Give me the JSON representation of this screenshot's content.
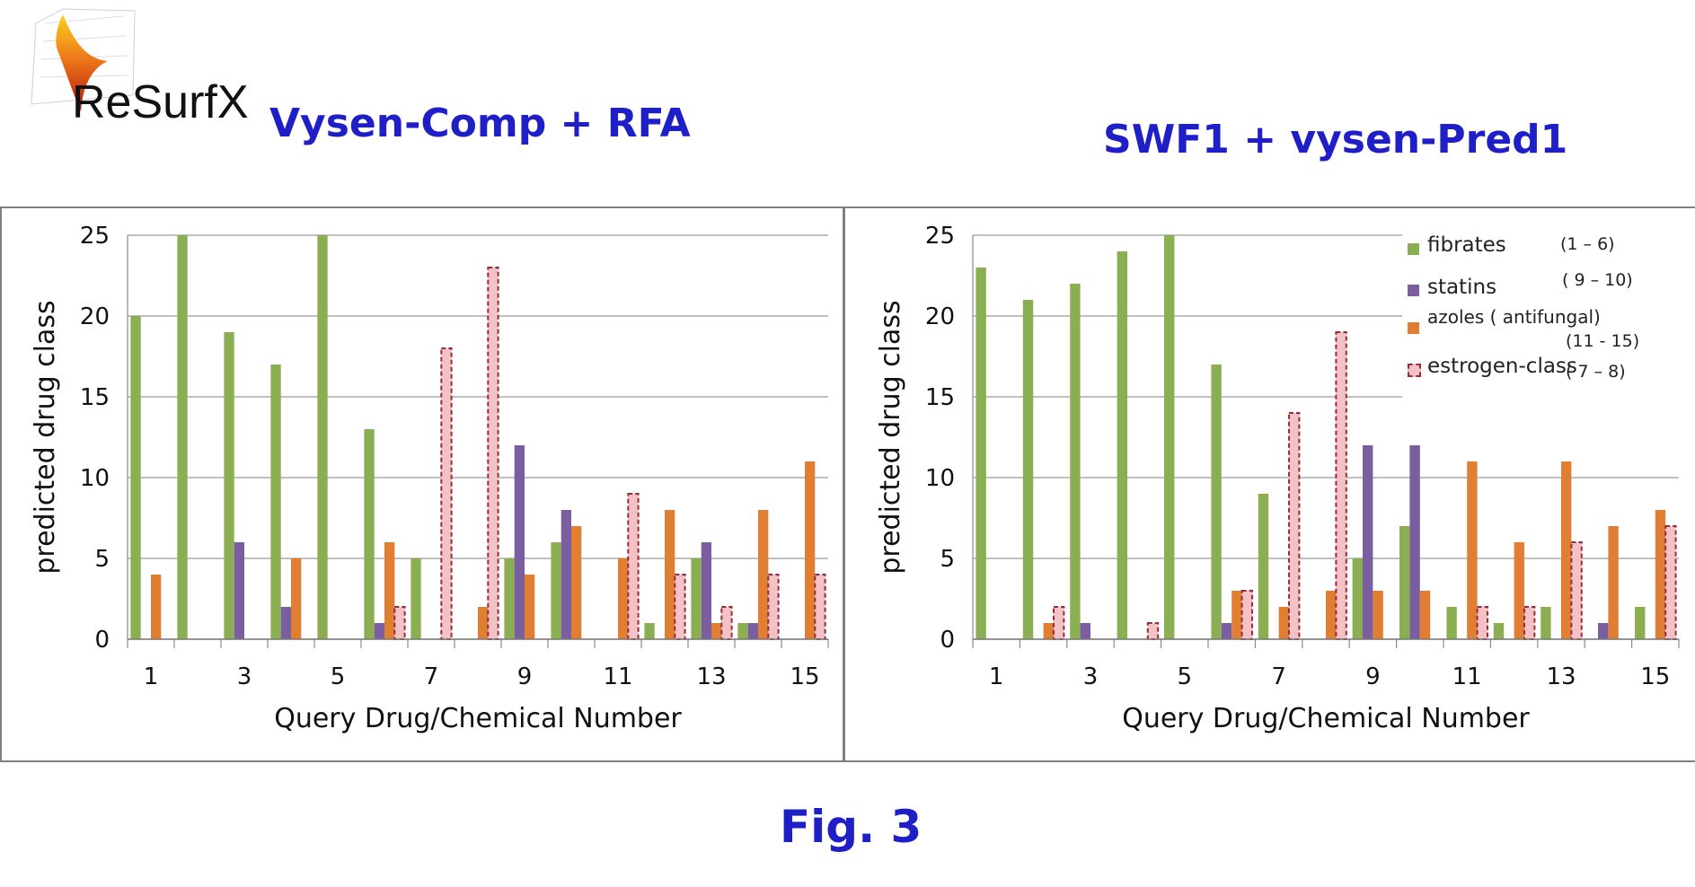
{
  "logo": {
    "text": "ReSurfX"
  },
  "figure_label": "Fig. 3",
  "colors": {
    "fibrates": "#8bae52",
    "statins": "#7a5ea0",
    "azoles": "#e07f34",
    "estrogen_fill": "#f2c2c6",
    "estrogen_border": "#9c2a35",
    "title": "#1f1fc8"
  },
  "legend": {
    "items": [
      {
        "label": "fibrates",
        "range": "(1 – 6)",
        "color": "#8bae52",
        "style": "solid"
      },
      {
        "label": "statins",
        "range": "( 9 – 10)",
        "color": "#7a5ea0",
        "style": "solid"
      },
      {
        "label": "azoles ( antifungal)",
        "range": "(11 - 15)",
        "color": "#e07f34",
        "style": "solid"
      },
      {
        "label": "estrogen-class",
        "range": "( 7 – 8)",
        "color": "#f2c2c6",
        "style": "dashed"
      }
    ]
  },
  "chart_data": [
    {
      "type": "bar",
      "title": "Vysen-Comp + RFA",
      "xlabel": "Query Drug/Chemical Number",
      "ylabel": "predicted drug class",
      "ylim": [
        0,
        25
      ],
      "yticks": [
        0,
        5,
        10,
        15,
        20,
        25
      ],
      "xtick_labels": [
        "1",
        "3",
        "5",
        "7",
        "9",
        "11",
        "13",
        "15"
      ],
      "categories": [
        1,
        2,
        3,
        4,
        5,
        6,
        7,
        8,
        9,
        10,
        11,
        12,
        13,
        14,
        15
      ],
      "grid": "horizontal",
      "series": [
        {
          "name": "fibrates",
          "values": [
            20,
            25,
            19,
            17,
            25,
            13,
            5,
            0,
            5,
            6,
            0,
            1,
            5,
            1,
            0
          ]
        },
        {
          "name": "statins",
          "values": [
            0,
            0,
            6,
            2,
            0,
            1,
            0,
            0,
            12,
            8,
            0,
            0,
            6,
            1,
            0
          ]
        },
        {
          "name": "azoles ( antifungal)",
          "values": [
            4,
            0,
            0,
            5,
            0,
            6,
            0,
            2,
            4,
            7,
            5,
            8,
            1,
            8,
            11
          ]
        },
        {
          "name": "estrogen-class",
          "values": [
            0,
            0,
            0,
            0,
            0,
            2,
            18,
            23,
            0,
            0,
            9,
            4,
            2,
            4,
            4
          ]
        }
      ]
    },
    {
      "type": "bar",
      "title": "SWF1 + vysen-Pred1",
      "xlabel": "Query Drug/Chemical Number",
      "ylabel": "predicted drug class",
      "ylim": [
        0,
        25
      ],
      "yticks": [
        0,
        5,
        10,
        15,
        20,
        25
      ],
      "xtick_labels": [
        "1",
        "3",
        "5",
        "7",
        "9",
        "11",
        "13",
        "15"
      ],
      "categories": [
        1,
        2,
        3,
        4,
        5,
        6,
        7,
        8,
        9,
        10,
        11,
        12,
        13,
        14,
        15
      ],
      "grid": "horizontal",
      "legend": "top-right",
      "series": [
        {
          "name": "fibrates",
          "values": [
            23,
            21,
            22,
            24,
            25,
            17,
            9,
            0,
            5,
            7,
            2,
            1,
            2,
            0,
            2
          ]
        },
        {
          "name": "statins",
          "values": [
            0,
            0,
            1,
            0,
            0,
            1,
            0,
            0,
            12,
            12,
            0,
            0,
            0,
            1,
            0
          ]
        },
        {
          "name": "azoles ( antifungal)",
          "values": [
            0,
            1,
            0,
            0,
            0,
            3,
            2,
            3,
            3,
            3,
            11,
            6,
            11,
            7,
            8
          ]
        },
        {
          "name": "estrogen-class",
          "values": [
            0,
            2,
            0,
            1,
            0,
            3,
            14,
            19,
            0,
            0,
            2,
            2,
            6,
            0,
            7
          ]
        }
      ]
    }
  ]
}
